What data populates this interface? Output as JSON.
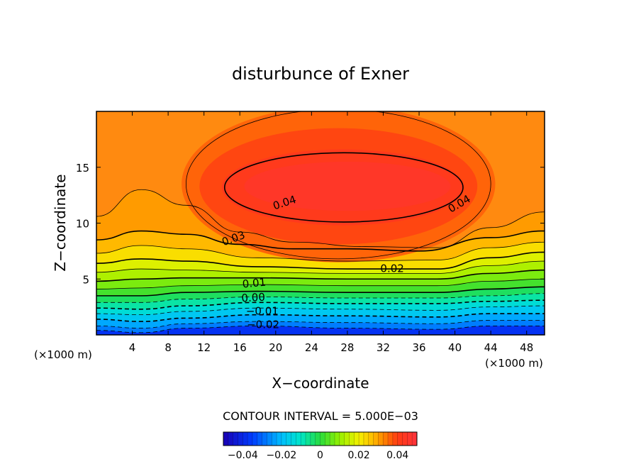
{
  "chart_data": {
    "type": "contour",
    "title": "disturbunce of Exner",
    "xlabel": "X−coordinate",
    "ylabel": "Z−coordinate",
    "x_unit_left": "(×1000 m)",
    "x_unit_right": "(×1000 m)",
    "x_ticks": [
      "4",
      "8",
      "12",
      "16",
      "20",
      "24",
      "28",
      "32",
      "36",
      "40",
      "44",
      "48"
    ],
    "x_tick_values": [
      4,
      8,
      12,
      16,
      20,
      24,
      28,
      32,
      36,
      40,
      44,
      48
    ],
    "y_ticks": [
      "5",
      "10",
      "15"
    ],
    "y_tick_values": [
      5,
      10,
      15
    ],
    "xlim": [
      0,
      50
    ],
    "ylim": [
      0,
      20
    ],
    "contour_interval_text": "CONTOUR INTERVAL = 5.000E−03",
    "contour_interval": 0.005,
    "contour_labels": [
      {
        "text": "0.04",
        "x": 21,
        "y": 11.8,
        "angle": -18
      },
      {
        "text": "0.04",
        "x": 40.5,
        "y": 11.7,
        "angle": -30
      },
      {
        "text": "0.03",
        "x": 15.3,
        "y": 8.6,
        "angle": -20
      },
      {
        "text": "0.02",
        "x": 33,
        "y": 5.9,
        "angle": 0
      },
      {
        "text": "0.01",
        "x": 17.6,
        "y": 4.6,
        "angle": -5
      },
      {
        "text": "0.00",
        "x": 17.5,
        "y": 3.3,
        "angle": -3
      },
      {
        "text": "−0.01",
        "x": 18.5,
        "y": 2.1,
        "angle": 0
      },
      {
        "text": "−0.02",
        "x": 18.6,
        "y": 0.9,
        "angle": 0
      }
    ],
    "colorbar": {
      "min": -0.05,
      "max": 0.05,
      "tick_labels": [
        "−0.04",
        "−0.02",
        "0",
        "0.02",
        "0.04"
      ],
      "tick_values": [
        -0.04,
        -0.02,
        0,
        0.02,
        0.04
      ]
    },
    "colors": {
      "low": "#1a00d0",
      "mid_low": "#00c8ff",
      "mid": "#40e040",
      "mid_high": "#f0f000",
      "high": "#ff8000",
      "max": "#ff3030"
    }
  }
}
